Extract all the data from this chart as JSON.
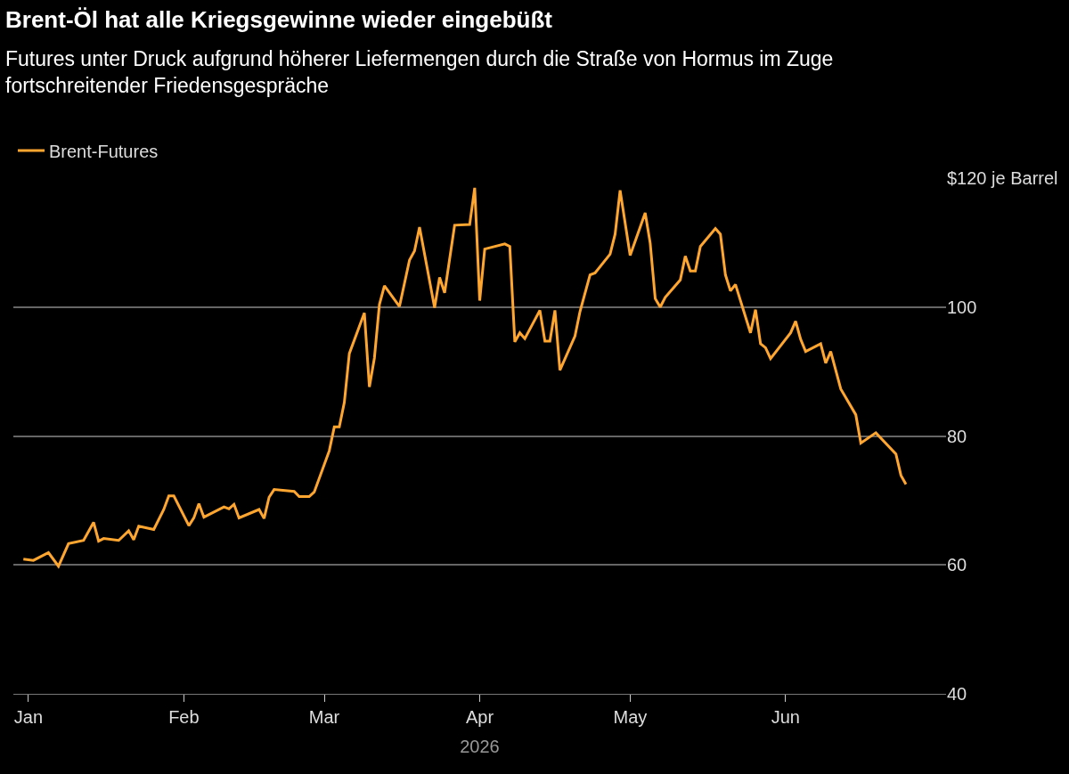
{
  "chart_data": {
    "type": "line",
    "title": "Brent-Öl hat alle Kriegsgewinne wieder eingebüßt",
    "subtitle": "Futures unter Druck aufgrund höherer Liefermengen durch die Straße von Hormus im Zuge fortschreitender Friedensgespräche",
    "xlabel": "2026",
    "x": [
      "2025-12-31",
      "2026-01-02",
      "2026-01-05",
      "2026-01-07",
      "2026-01-09",
      "2026-01-12",
      "2026-01-14",
      "2026-01-15",
      "2026-01-16",
      "2026-01-19",
      "2026-01-21",
      "2026-01-22",
      "2026-01-23",
      "2026-01-26",
      "2026-01-28",
      "2026-01-29",
      "2026-01-30",
      "2026-02-02",
      "2026-02-03",
      "2026-02-04",
      "2026-02-05",
      "2026-02-09",
      "2026-02-10",
      "2026-02-11",
      "2026-02-12",
      "2026-02-16",
      "2026-02-17",
      "2026-02-18",
      "2026-02-19",
      "2026-02-23",
      "2026-02-24",
      "2026-02-26",
      "2026-02-27",
      "2026-03-02",
      "2026-03-03",
      "2026-03-04",
      "2026-03-05",
      "2026-03-06",
      "2026-03-09",
      "2026-03-10",
      "2026-03-11",
      "2026-03-12",
      "2026-03-13",
      "2026-03-16",
      "2026-03-18",
      "2026-03-19",
      "2026-03-20",
      "2026-03-23",
      "2026-03-24",
      "2026-03-25",
      "2026-03-27",
      "2026-03-30",
      "2026-03-31",
      "2026-04-01",
      "2026-04-02",
      "2026-04-06",
      "2026-04-07",
      "2026-04-08",
      "2026-04-09",
      "2026-04-10",
      "2026-04-13",
      "2026-04-14",
      "2026-04-15",
      "2026-04-16",
      "2026-04-17",
      "2026-04-20",
      "2026-04-21",
      "2026-04-23",
      "2026-04-24",
      "2026-04-27",
      "2026-04-28",
      "2026-04-29",
      "2026-05-01",
      "2026-05-04",
      "2026-05-05",
      "2026-05-06",
      "2026-05-07",
      "2026-05-08",
      "2026-05-11",
      "2026-05-12",
      "2026-05-13",
      "2026-05-14",
      "2026-05-15",
      "2026-05-18",
      "2026-05-19",
      "2026-05-20",
      "2026-05-21",
      "2026-05-22",
      "2026-05-25",
      "2026-05-26",
      "2026-05-27",
      "2026-05-28",
      "2026-05-29",
      "2026-06-02",
      "2026-06-03",
      "2026-06-04",
      "2026-06-05",
      "2026-06-08",
      "2026-06-09",
      "2026-06-10",
      "2026-06-12",
      "2026-06-15",
      "2026-06-16",
      "2026-06-19",
      "2026-06-23",
      "2026-06-24",
      "2026-06-25"
    ],
    "series": [
      {
        "name": "Brent-Futures",
        "color": "#ffa630",
        "values": [
          60.9,
          60.7,
          61.9,
          59.8,
          63.3,
          63.8,
          66.6,
          63.7,
          64.1,
          63.8,
          65.3,
          63.9,
          66.0,
          65.5,
          68.6,
          70.7,
          70.7,
          66.1,
          67.3,
          69.5,
          67.4,
          69.0,
          68.7,
          69.4,
          67.3,
          68.6,
          67.2,
          70.5,
          71.7,
          71.4,
          70.6,
          70.6,
          71.3,
          77.7,
          81.4,
          81.4,
          85.2,
          92.8,
          99.1,
          87.6,
          92.1,
          100.4,
          103.3,
          100.1,
          107.3,
          108.7,
          112.4,
          99.9,
          104.6,
          102.2,
          112.7,
          112.8,
          118.5,
          101.0,
          109.0,
          109.8,
          109.4,
          94.6,
          96.0,
          95.1,
          99.5,
          94.7,
          94.7,
          99.5,
          90.2,
          95.5,
          99.3,
          105.0,
          105.3,
          108.2,
          111.3,
          118.1,
          108.0,
          114.6,
          109.9,
          101.3,
          100.0,
          101.5,
          104.2,
          107.9,
          105.6,
          105.6,
          109.4,
          112.2,
          111.3,
          105.0,
          102.5,
          103.5,
          96.0,
          99.6,
          94.3,
          93.7,
          92.0,
          96.0,
          97.8,
          95.0,
          93.1,
          94.3,
          91.3,
          93.1,
          87.3,
          83.3,
          78.9,
          80.5,
          77.2,
          73.9,
          72.5
        ]
      }
    ],
    "xlim": [
      "2025-12-29",
      "2026-07-03"
    ],
    "xticks": [
      {
        "value": "2026-01-01",
        "label": "Jan"
      },
      {
        "value": "2026-02-01",
        "label": "Feb"
      },
      {
        "value": "2026-03-01",
        "label": "Mar"
      },
      {
        "value": "2026-04-01",
        "label": "Apr"
      },
      {
        "value": "2026-05-01",
        "label": "May"
      },
      {
        "value": "2026-06-01",
        "label": "Jun"
      }
    ],
    "ylim": [
      40,
      120
    ],
    "yticks": [
      40,
      60,
      80,
      100,
      {
        "value": 120,
        "label": "$120 je Barrel"
      }
    ],
    "grid": "y",
    "legend": "top left",
    "marker": "none",
    "line_style": "solid"
  }
}
